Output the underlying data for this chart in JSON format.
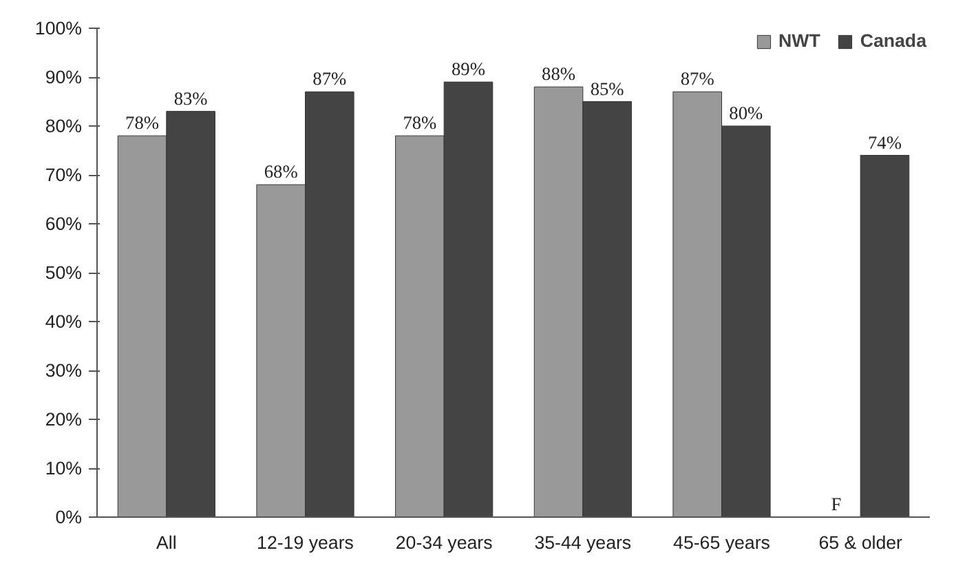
{
  "chart_data": {
    "type": "bar",
    "categories": [
      "All",
      "12-19 years",
      "20-34 years",
      "35-44 years",
      "45-65 years",
      "65 & older"
    ],
    "series": [
      {
        "name": "NWT",
        "color": "#999999",
        "values": [
          78,
          68,
          78,
          88,
          87,
          null
        ],
        "value_labels": [
          "78%",
          "68%",
          "78%",
          "88%",
          "87%",
          "F"
        ]
      },
      {
        "name": "Canada",
        "color": "#444444",
        "values": [
          83,
          87,
          89,
          85,
          80,
          74
        ],
        "value_labels": [
          "83%",
          "87%",
          "89%",
          "85%",
          "80%",
          "74%"
        ]
      }
    ],
    "ylim": [
      0,
      100
    ],
    "yticks": [
      {
        "value": 0,
        "label": "0%"
      },
      {
        "value": 10,
        "label": "10%"
      },
      {
        "value": 20,
        "label": "20%"
      },
      {
        "value": 30,
        "label": "30%"
      },
      {
        "value": 40,
        "label": "40%"
      },
      {
        "value": 50,
        "label": "50%"
      },
      {
        "value": 60,
        "label": "60%"
      },
      {
        "value": 70,
        "label": "70%"
      },
      {
        "value": 80,
        "label": "80%"
      },
      {
        "value": 90,
        "label": "90%"
      },
      {
        "value": 100,
        "label": "100%"
      }
    ],
    "grid": false,
    "legend": "top right"
  }
}
